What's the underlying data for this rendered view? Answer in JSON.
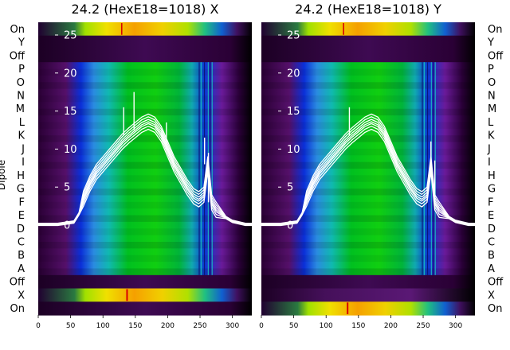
{
  "chart_data": {
    "type": "heatmap",
    "ylabel": "Dipole",
    "row_labels": [
      "On",
      "Y",
      "Off",
      "P",
      "O",
      "N",
      "M",
      "L",
      "K",
      "J",
      "I",
      "H",
      "G",
      "F",
      "E",
      "D",
      "C",
      "B",
      "A",
      "Off",
      "X",
      "On"
    ],
    "x_ticks": [
      0,
      50,
      100,
      150,
      200,
      250,
      300
    ],
    "xlim": [
      0,
      330
    ],
    "overlay_y_ticks": [
      25,
      20,
      15,
      10,
      5,
      0
    ],
    "overlay_ylim": [
      -5.3,
      26.5
    ],
    "colormap": "nipy_spectral",
    "panels": [
      {
        "title": "24.2 (HexE18=1018) X",
        "bottom_active_row": "X",
        "trace_color": "#ffffff",
        "trace_profile": {
          "x": [
            0,
            30,
            55,
            63,
            70,
            80,
            90,
            100,
            110,
            120,
            130,
            140,
            150,
            160,
            170,
            180,
            190,
            200,
            210,
            220,
            230,
            240,
            248,
            256,
            262,
            268,
            275,
            290,
            300,
            320,
            330
          ],
          "y": [
            0.1,
            0.1,
            0.4,
            1.5,
            3.5,
            5.5,
            7,
            8,
            9,
            10,
            11,
            11.8,
            12.5,
            13.2,
            13.6,
            13.2,
            12,
            10,
            8,
            6.5,
            5,
            3.8,
            3.4,
            4,
            8,
            3,
            2,
            1,
            0.5,
            0.1,
            0.1
          ]
        },
        "spikes": [
          {
            "x": 132,
            "y": 15.5
          },
          {
            "x": 148,
            "y": 17.5
          },
          {
            "x": 198,
            "y": 13.5
          },
          {
            "x": 257,
            "y": 11.5
          },
          {
            "x": 263,
            "y": 9.5
          }
        ]
      },
      {
        "title": "24.2 (HexE18=1018) Y",
        "bottom_active_row": "On",
        "trace_color": "#ffffff",
        "trace_profile": {
          "x": [
            0,
            30,
            55,
            63,
            70,
            80,
            90,
            100,
            110,
            120,
            130,
            140,
            150,
            160,
            170,
            180,
            190,
            200,
            210,
            220,
            230,
            240,
            248,
            256,
            262,
            268,
            275,
            290,
            300,
            320,
            330
          ],
          "y": [
            0.1,
            0.1,
            0.4,
            1.5,
            3.5,
            5.5,
            7,
            8,
            9,
            10,
            11,
            11.8,
            12.5,
            13.2,
            13.6,
            13.2,
            12,
            10,
            8,
            6.5,
            5,
            3.8,
            3.4,
            4,
            8,
            3,
            2,
            1,
            0.5,
            0.1,
            0.1
          ]
        },
        "spikes": [
          {
            "x": 128,
            "y": 11
          },
          {
            "x": 136,
            "y": 15.5
          },
          {
            "x": 262,
            "y": 11
          },
          {
            "x": 268,
            "y": 8.5
          }
        ]
      }
    ]
  }
}
